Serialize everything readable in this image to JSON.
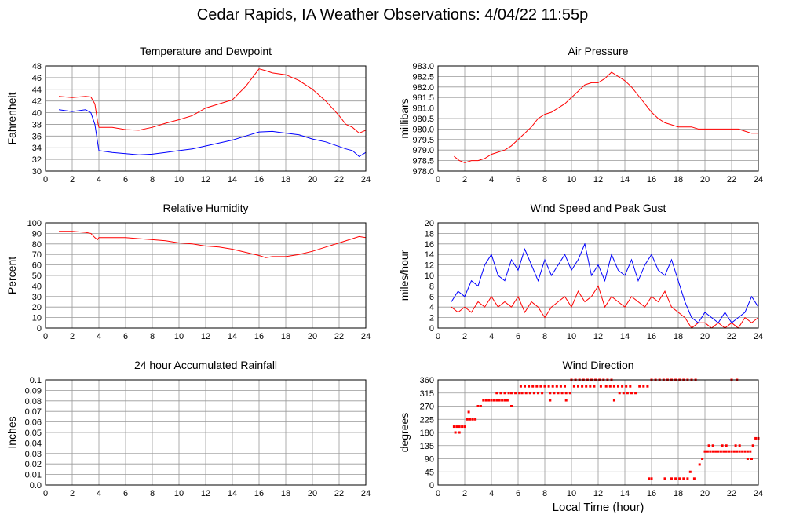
{
  "page": {
    "title": "Cedar Rapids, IA Weather Observations: 4/04/22 11:55p",
    "x_axis_label": "Local Time (hour)"
  },
  "colors": {
    "primary": "#ff0000",
    "secondary": "#0000ff",
    "grid": "#999999"
  },
  "chart_data": [
    {
      "id": "temp",
      "type": "line",
      "title": "Temperature and Dewpoint",
      "ylabel": "Fahrenheit",
      "xlabel": "",
      "xlim": [
        0,
        24
      ],
      "xticks": [
        2,
        4,
        6,
        8,
        10,
        12,
        14,
        16,
        18,
        20,
        22,
        24
      ],
      "ylim": [
        30,
        48
      ],
      "yticks": [
        "30",
        "32",
        "34",
        "36",
        "38",
        "40",
        "42",
        "44",
        "46",
        "48"
      ],
      "grid": true,
      "series": [
        {
          "color": "red",
          "x": [
            1,
            2,
            3,
            3.4,
            3.7,
            3.9,
            4,
            5,
            6,
            7,
            8,
            9,
            10,
            11,
            12,
            13,
            14,
            15,
            15.5,
            16,
            16.5,
            17,
            18,
            19,
            20,
            21,
            22,
            22.5,
            23,
            23.5,
            24
          ],
          "y": [
            42.8,
            42.6,
            42.8,
            42.7,
            41.5,
            38.5,
            37.5,
            37.5,
            37.1,
            37.0,
            37.5,
            38.2,
            38.8,
            39.5,
            40.8,
            41.5,
            42.2,
            44.5,
            46.0,
            47.5,
            47.2,
            46.8,
            46.5,
            45.5,
            44.0,
            42.0,
            39.5,
            38.0,
            37.5,
            36.5,
            37.0
          ]
        },
        {
          "color": "blue",
          "x": [
            1,
            2,
            3,
            3.4,
            3.7,
            3.9,
            4,
            5,
            6,
            7,
            8,
            9,
            10,
            11,
            12,
            13,
            14,
            15,
            16,
            17,
            18,
            19,
            20,
            21,
            22,
            22.5,
            23,
            23.5,
            24
          ],
          "y": [
            40.5,
            40.2,
            40.5,
            40.0,
            38.0,
            35.0,
            33.5,
            33.2,
            33.0,
            32.8,
            32.9,
            33.2,
            33.5,
            33.8,
            34.3,
            34.8,
            35.3,
            36.0,
            36.7,
            36.8,
            36.5,
            36.2,
            35.5,
            35.0,
            34.2,
            33.8,
            33.5,
            32.5,
            33.2
          ]
        }
      ]
    },
    {
      "id": "pressure",
      "type": "line",
      "title": "Air Pressure",
      "ylabel": "millibars",
      "xlabel": "",
      "xlim": [
        0,
        24
      ],
      "xticks": [
        2,
        4,
        6,
        8,
        10,
        12,
        14,
        16,
        18,
        20,
        22,
        24
      ],
      "ylim": [
        978,
        983
      ],
      "yticks": [
        "978.0",
        "978.5",
        "979.0",
        "979.5",
        "980.0",
        "980.5",
        "981.0",
        "981.5",
        "982.0",
        "982.5",
        "983.0"
      ],
      "grid": true,
      "series": [
        {
          "color": "red",
          "x": [
            1.2,
            1.6,
            2,
            2.5,
            3,
            3.5,
            4,
            4.5,
            5,
            5.5,
            6,
            6.5,
            7,
            7.5,
            8,
            8.5,
            9,
            9.5,
            10,
            10.5,
            11,
            11.5,
            12,
            12.5,
            13,
            13.5,
            14,
            14.5,
            15,
            15.5,
            16,
            16.5,
            17,
            17.5,
            18,
            18.5,
            19,
            19.5,
            20,
            20.5,
            21,
            21.5,
            22,
            22.5,
            23,
            23.5,
            24
          ],
          "y": [
            978.7,
            978.5,
            978.4,
            978.5,
            978.5,
            978.6,
            978.8,
            978.9,
            979.0,
            979.2,
            979.5,
            979.8,
            980.1,
            980.5,
            980.7,
            980.8,
            981.0,
            981.2,
            981.5,
            981.8,
            982.1,
            982.2,
            982.2,
            982.4,
            982.7,
            982.5,
            982.3,
            982.0,
            981.6,
            981.2,
            980.8,
            980.5,
            980.3,
            980.2,
            980.1,
            980.1,
            980.1,
            980.0,
            980.0,
            980.0,
            980.0,
            980.0,
            980.0,
            980.0,
            979.9,
            979.8,
            979.8
          ]
        }
      ]
    },
    {
      "id": "humidity",
      "type": "line",
      "title": "Relative Humidity",
      "ylabel": "Percent",
      "xlabel": "",
      "xlim": [
        0,
        24
      ],
      "xticks": [
        2,
        4,
        6,
        8,
        10,
        12,
        14,
        16,
        18,
        20,
        22,
        24
      ],
      "ylim": [
        0,
        100
      ],
      "yticks": [
        "0",
        "10",
        "20",
        "30",
        "40",
        "50",
        "60",
        "70",
        "80",
        "90",
        "100"
      ],
      "grid": true,
      "series": [
        {
          "color": "red",
          "x": [
            1,
            2,
            3,
            3.4,
            3.7,
            3.9,
            4,
            5,
            6,
            7,
            8,
            9,
            10,
            11,
            12,
            13,
            14,
            15,
            16,
            16.5,
            17,
            18,
            19,
            20,
            21,
            22,
            23,
            23.5,
            24
          ],
          "y": [
            92,
            92,
            91,
            90,
            86,
            84,
            86,
            86,
            86,
            85,
            84,
            83,
            81,
            80,
            78,
            77,
            75,
            72,
            69,
            67,
            68,
            68,
            70,
            73,
            77,
            81,
            85,
            87,
            86
          ]
        }
      ]
    },
    {
      "id": "wind",
      "type": "line",
      "title": "Wind Speed and Peak Gust",
      "ylabel": "miles/hour",
      "xlabel": "",
      "xlim": [
        0,
        24
      ],
      "xticks": [
        2,
        4,
        6,
        8,
        10,
        12,
        14,
        16,
        18,
        20,
        22,
        24
      ],
      "ylim": [
        0,
        20
      ],
      "yticks": [
        "0",
        "2",
        "4",
        "6",
        "8",
        "10",
        "12",
        "14",
        "16",
        "18",
        "20"
      ],
      "grid": true,
      "series": [
        {
          "color": "blue",
          "x": [
            1,
            1.5,
            2,
            2.5,
            3,
            3.5,
            4,
            4.5,
            5,
            5.5,
            6,
            6.5,
            7,
            7.5,
            8,
            8.5,
            9,
            9.5,
            10,
            10.5,
            11,
            11.5,
            12,
            12.5,
            13,
            13.5,
            14,
            14.5,
            15,
            15.5,
            16,
            16.5,
            17,
            17.5,
            18,
            18.5,
            19,
            19.5,
            20,
            20.5,
            21,
            21.5,
            22,
            22.5,
            23,
            23.5,
            24
          ],
          "y": [
            5,
            7,
            6,
            9,
            8,
            12,
            14,
            10,
            9,
            13,
            11,
            15,
            12,
            9,
            13,
            10,
            12,
            14,
            11,
            13,
            16,
            10,
            12,
            9,
            14,
            11,
            10,
            13,
            9,
            12,
            14,
            11,
            10,
            13,
            9,
            5,
            2,
            1,
            3,
            2,
            1,
            3,
            1,
            2,
            3,
            6,
            4
          ]
        },
        {
          "color": "red",
          "x": [
            1,
            1.5,
            2,
            2.5,
            3,
            3.5,
            4,
            4.5,
            5,
            5.5,
            6,
            6.5,
            7,
            7.5,
            8,
            8.5,
            9,
            9.5,
            10,
            10.5,
            11,
            11.5,
            12,
            12.5,
            13,
            13.5,
            14,
            14.5,
            15,
            15.5,
            16,
            16.5,
            17,
            17.5,
            18,
            18.5,
            19,
            19.5,
            20,
            20.5,
            21,
            21.5,
            22,
            22.5,
            23,
            23.5,
            24
          ],
          "y": [
            4,
            3,
            4,
            3,
            5,
            4,
            6,
            4,
            5,
            4,
            6,
            3,
            5,
            4,
            2,
            4,
            5,
            6,
            4,
            7,
            5,
            6,
            8,
            4,
            6,
            5,
            4,
            6,
            5,
            4,
            6,
            5,
            7,
            4,
            3,
            2,
            0,
            1,
            1,
            0,
            1,
            0,
            1,
            0,
            2,
            1,
            2
          ]
        }
      ]
    },
    {
      "id": "rain",
      "type": "line",
      "title": "24 hour Accumulated Rainfall",
      "ylabel": "Inches",
      "xlabel": "",
      "xlim": [
        0,
        24
      ],
      "xticks": [
        2,
        4,
        6,
        8,
        10,
        12,
        14,
        16,
        18,
        20,
        22,
        24
      ],
      "ylim": [
        0,
        0.1
      ],
      "yticks": [
        "0.0",
        "0.01",
        "0.02",
        "0.03",
        "0.04",
        "0.05",
        "0.06",
        "0.07",
        "0.08",
        "0.09",
        "0.1"
      ],
      "grid": true,
      "series": [
        {
          "color": "red",
          "x": [
            1,
            24
          ],
          "y": [
            0,
            0
          ]
        }
      ]
    },
    {
      "id": "direction",
      "type": "scatter",
      "title": "Wind Direction",
      "ylabel": "degrees",
      "xlabel": "Local Time (hour)",
      "xlim": [
        0,
        24
      ],
      "xticks": [
        2,
        4,
        6,
        8,
        10,
        12,
        14,
        16,
        18,
        20,
        22,
        24
      ],
      "ylim": [
        0,
        360
      ],
      "yticks": [
        "0",
        "45",
        "90",
        "135",
        "180",
        "225",
        "270",
        "315",
        "360"
      ],
      "grid": true,
      "series": [
        {
          "color": "red",
          "x": [
            1.2,
            1.4,
            1.6,
            1.8,
            2.0,
            1.3,
            1.6,
            2.2,
            2.4,
            2.6,
            2.8,
            2.3,
            3.0,
            3.2,
            3.4,
            3.6,
            3.8,
            4.0,
            4.2,
            4.4,
            4.6,
            4.8,
            5.0,
            5.2,
            4.4,
            4.7,
            5.0,
            5.3,
            5.5,
            5.8,
            6.1,
            6.3,
            6.6,
            6.9,
            7.2,
            7.5,
            7.8,
            6.2,
            6.5,
            6.8,
            7.1,
            7.4,
            7.7,
            8.0,
            8.3,
            8.6,
            8.9,
            9.2,
            9.5,
            8.4,
            8.7,
            9.0,
            9.3,
            9.6,
            9.9,
            10.2,
            10.5,
            10.8,
            11.1,
            11.4,
            11.7,
            10.0,
            10.3,
            10.6,
            10.9,
            11.2,
            11.5,
            11.8,
            12.1,
            12.4,
            12.7,
            13.0,
            12.2,
            12.6,
            12.9,
            13.2,
            13.5,
            13.8,
            14.1,
            14.4,
            13.6,
            13.9,
            14.2,
            14.5,
            14.8,
            15.1,
            15.4,
            15.7,
            16.0,
            16.3,
            16.6,
            16.9,
            17.2,
            17.5,
            17.8,
            18.1,
            18.4,
            18.7,
            19.0,
            19.3,
            15.8,
            16.0,
            17.0,
            17.5,
            17.8,
            18.1,
            18.4,
            18.7,
            18.9,
            19.2,
            19.6,
            19.8,
            20.0,
            20.2,
            20.4,
            20.6,
            20.8,
            21.0,
            21.2,
            21.4,
            21.6,
            21.8,
            22.0,
            22.2,
            22.4,
            22.6,
            22.8,
            23.0,
            23.2,
            23.4,
            23.6,
            23.8,
            24.0,
            20.3,
            20.6,
            21.3,
            21.6,
            22.3,
            22.6,
            23.2,
            23.5,
            22.0,
            22.4,
            13.2,
            9.6,
            8.4,
            5.5
          ],
          "y": [
            200,
            200,
            200,
            200,
            200,
            180,
            180,
            225,
            225,
            225,
            225,
            250,
            270,
            270,
            290,
            290,
            290,
            290,
            290,
            290,
            290,
            290,
            290,
            290,
            315,
            315,
            315,
            315,
            315,
            315,
            315,
            315,
            315,
            315,
            315,
            315,
            315,
            338,
            338,
            338,
            338,
            338,
            338,
            338,
            338,
            338,
            338,
            338,
            338,
            315,
            315,
            315,
            315,
            315,
            315,
            338,
            338,
            338,
            338,
            338,
            338,
            360,
            360,
            360,
            360,
            360,
            360,
            360,
            360,
            360,
            360,
            360,
            338,
            338,
            338,
            338,
            338,
            338,
            338,
            338,
            315,
            315,
            315,
            315,
            315,
            338,
            338,
            338,
            360,
            360,
            360,
            360,
            360,
            360,
            360,
            360,
            360,
            360,
            360,
            360,
            22,
            22,
            22,
            22,
            22,
            22,
            22,
            22,
            45,
            22,
            70,
            90,
            115,
            115,
            115,
            115,
            115,
            115,
            115,
            115,
            115,
            115,
            115,
            115,
            115,
            115,
            115,
            115,
            115,
            115,
            135,
            160,
            160,
            135,
            135,
            135,
            135,
            135,
            135,
            90,
            90,
            360,
            360,
            290,
            290,
            290,
            270
          ]
        }
      ]
    }
  ]
}
